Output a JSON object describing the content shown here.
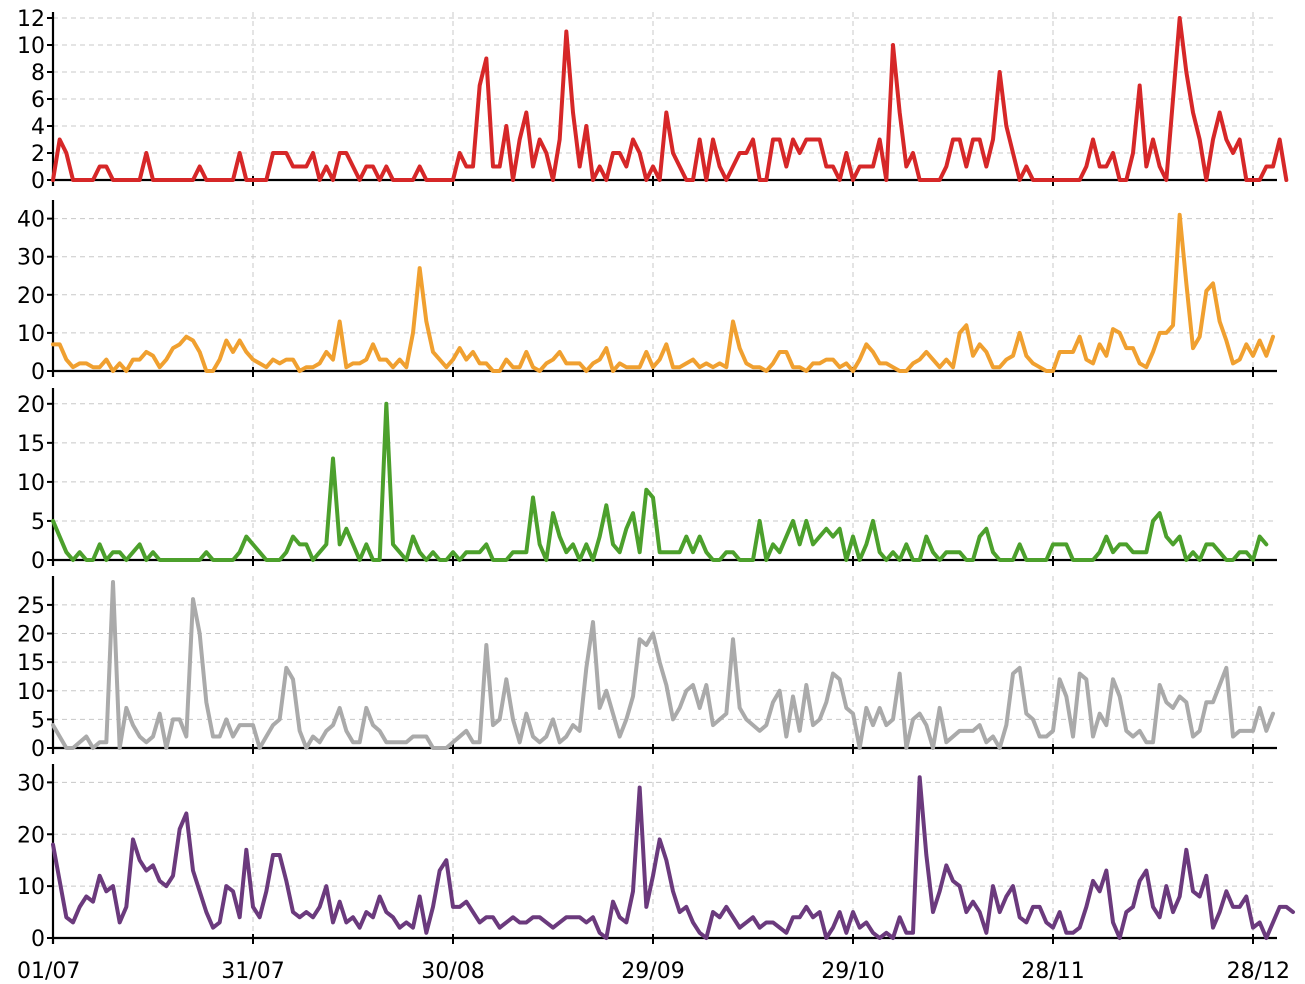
{
  "chart_data": [
    {
      "type": "line",
      "title": "",
      "xlabel": "",
      "ylabel": "",
      "x_ticks": [
        "01/07",
        "31/07",
        "30/08",
        "29/09",
        "29/10",
        "28/11",
        "28/12"
      ],
      "x_range": [
        "01/07",
        "31/12"
      ],
      "grid": true,
      "panels": [
        {
          "color": "#d62728",
          "ylim": [
            0,
            12
          ],
          "yticks": [
            0,
            2,
            4,
            6,
            8,
            10,
            12
          ],
          "values": [
            0,
            3,
            2,
            0,
            0,
            0,
            0,
            1,
            1,
            0,
            0,
            0,
            0,
            0,
            2,
            0,
            0,
            0,
            0,
            0,
            0,
            0,
            1,
            0,
            0,
            0,
            0,
            0,
            2,
            0,
            0,
            0,
            0,
            2,
            2,
            2,
            1,
            1,
            1,
            2,
            0,
            1,
            0,
            2,
            2,
            1,
            0,
            1,
            1,
            0,
            1,
            0,
            0,
            0,
            0,
            1,
            0,
            0,
            0,
            0,
            0,
            2,
            1,
            1,
            7,
            9,
            1,
            1,
            4,
            0,
            3,
            5,
            1,
            3,
            2,
            0,
            3,
            11,
            5,
            1,
            4,
            0,
            1,
            0,
            2,
            2,
            1,
            3,
            2,
            0,
            1,
            0,
            5,
            2,
            1,
            0,
            0,
            3,
            0,
            3,
            1,
            0,
            1,
            2,
            2,
            3,
            0,
            0,
            3,
            3,
            1,
            3,
            2,
            3,
            3,
            3,
            1,
            1,
            0,
            2,
            0,
            1,
            1,
            1,
            3,
            0,
            10,
            5,
            1,
            2,
            0,
            0,
            0,
            0,
            1,
            3,
            3,
            1,
            3,
            3,
            1,
            3,
            8,
            4,
            2,
            0,
            1,
            0,
            0,
            0,
            0,
            0,
            0,
            0,
            0,
            1,
            3,
            1,
            1,
            2,
            0,
            0,
            2,
            7,
            1,
            3,
            1,
            0,
            6,
            12,
            8,
            5,
            3,
            0,
            3,
            5,
            3,
            2,
            3,
            0,
            0,
            0,
            1,
            1,
            3,
            0
          ]
        },
        {
          "color": "#f0a030",
          "ylim": [
            0,
            42
          ],
          "yticks": [
            0,
            10,
            20,
            30,
            40
          ],
          "values": [
            7,
            7,
            3,
            1,
            2,
            2,
            1,
            1,
            3,
            0,
            2,
            0,
            3,
            3,
            5,
            4,
            1,
            3,
            6,
            7,
            9,
            8,
            5,
            0,
            0,
            3,
            8,
            5,
            8,
            5,
            3,
            2,
            1,
            3,
            2,
            3,
            3,
            0,
            1,
            1,
            2,
            5,
            3,
            13,
            1,
            2,
            2,
            3,
            7,
            3,
            3,
            1,
            3,
            1,
            10,
            27,
            13,
            5,
            3,
            1,
            3,
            6,
            3,
            5,
            2,
            2,
            0,
            0,
            3,
            1,
            1,
            5,
            1,
            0,
            2,
            3,
            5,
            2,
            2,
            2,
            0,
            2,
            3,
            6,
            0,
            2,
            1,
            1,
            1,
            5,
            1,
            3,
            7,
            1,
            1,
            2,
            3,
            1,
            2,
            1,
            2,
            1,
            13,
            6,
            2,
            1,
            1,
            0,
            2,
            5,
            5,
            1,
            1,
            0,
            2,
            2,
            3,
            3,
            1,
            2,
            0,
            3,
            7,
            5,
            2,
            2,
            1,
            0,
            0,
            2,
            3,
            5,
            3,
            1,
            3,
            1,
            10,
            12,
            4,
            7,
            5,
            1,
            1,
            3,
            4,
            10,
            4,
            2,
            1,
            0,
            0,
            5,
            5,
            5,
            9,
            3,
            2,
            7,
            4,
            11,
            10,
            6,
            6,
            2,
            1,
            5,
            10,
            10,
            12,
            41,
            23,
            6,
            9,
            21,
            23,
            13,
            8,
            2,
            3,
            7,
            4,
            8,
            4,
            9
          ]
        },
        {
          "color": "#4ca02c",
          "ylim": [
            0,
            21
          ],
          "yticks": [
            0,
            5,
            10,
            15,
            20
          ],
          "values": [
            5,
            3,
            1,
            0,
            1,
            0,
            0,
            2,
            0,
            1,
            1,
            0,
            1,
            2,
            0,
            1,
            0,
            0,
            0,
            0,
            0,
            0,
            0,
            1,
            0,
            0,
            0,
            0,
            1,
            3,
            2,
            1,
            0,
            0,
            0,
            1,
            3,
            2,
            2,
            0,
            1,
            2,
            13,
            2,
            4,
            2,
            0,
            2,
            0,
            0,
            20,
            2,
            1,
            0,
            3,
            1,
            0,
            1,
            0,
            0,
            1,
            0,
            1,
            1,
            1,
            2,
            0,
            0,
            0,
            1,
            1,
            1,
            8,
            2,
            0,
            6,
            3,
            1,
            2,
            0,
            2,
            0,
            3,
            7,
            2,
            1,
            4,
            6,
            1,
            9,
            8,
            1,
            1,
            1,
            1,
            3,
            1,
            3,
            1,
            0,
            0,
            1,
            1,
            0,
            0,
            0,
            5,
            0,
            2,
            1,
            3,
            5,
            2,
            5,
            2,
            3,
            4,
            3,
            4,
            0,
            3,
            0,
            2,
            5,
            1,
            0,
            1,
            0,
            2,
            0,
            0,
            3,
            1,
            0,
            1,
            1,
            1,
            0,
            0,
            3,
            4,
            1,
            0,
            0,
            0,
            2,
            0,
            0,
            0,
            0,
            2,
            2,
            2,
            0,
            0,
            0,
            0,
            1,
            3,
            1,
            2,
            2,
            1,
            1,
            1,
            5,
            6,
            3,
            2,
            3,
            0,
            1,
            0,
            2,
            2,
            1,
            0,
            0,
            1,
            1,
            0,
            3,
            2
          ]
        },
        {
          "color": "#aaaaaa",
          "ylim": [
            0,
            29
          ],
          "yticks": [
            0,
            5,
            10,
            15,
            20,
            25
          ],
          "values": [
            4,
            2,
            0,
            0,
            1,
            2,
            0,
            1,
            1,
            29,
            0,
            7,
            4,
            2,
            1,
            2,
            6,
            0,
            5,
            5,
            2,
            26,
            20,
            8,
            2,
            2,
            5,
            2,
            4,
            4,
            4,
            0,
            2,
            4,
            5,
            14,
            12,
            3,
            0,
            2,
            1,
            3,
            4,
            7,
            3,
            1,
            1,
            7,
            4,
            3,
            1,
            1,
            1,
            1,
            2,
            2,
            2,
            0,
            0,
            0,
            1,
            2,
            3,
            1,
            1,
            18,
            4,
            5,
            12,
            5,
            1,
            6,
            2,
            1,
            2,
            5,
            1,
            2,
            4,
            3,
            14,
            22,
            7,
            10,
            6,
            2,
            5,
            9,
            19,
            18,
            20,
            15,
            11,
            5,
            7,
            10,
            11,
            7,
            11,
            4,
            5,
            6,
            19,
            7,
            5,
            4,
            3,
            4,
            8,
            10,
            2,
            9,
            3,
            11,
            4,
            5,
            8,
            13,
            12,
            7,
            6,
            0,
            7,
            4,
            7,
            4,
            5,
            13,
            0,
            5,
            6,
            4,
            0,
            7,
            1,
            2,
            3,
            3,
            3,
            4,
            1,
            2,
            0,
            4,
            13,
            14,
            6,
            5,
            2,
            2,
            3,
            12,
            9,
            2,
            13,
            12,
            2,
            6,
            4,
            12,
            9,
            3,
            2,
            3,
            1,
            1,
            11,
            8,
            7,
            9,
            8,
            2,
            3,
            8,
            8,
            11,
            14,
            2,
            3,
            3,
            3,
            7,
            3,
            6
          ]
        },
        {
          "color": "#6b3a7d",
          "ylim": [
            0,
            32
          ],
          "yticks": [
            0,
            10,
            20,
            30
          ],
          "values": [
            18,
            11,
            4,
            3,
            6,
            8,
            7,
            12,
            9,
            10,
            3,
            6,
            19,
            15,
            13,
            14,
            11,
            10,
            12,
            21,
            24,
            13,
            9,
            5,
            2,
            3,
            10,
            9,
            4,
            17,
            6,
            4,
            9,
            16,
            16,
            11,
            5,
            4,
            5,
            4,
            6,
            10,
            3,
            7,
            3,
            4,
            2,
            5,
            4,
            8,
            5,
            4,
            2,
            3,
            2,
            8,
            1,
            6,
            13,
            15,
            6,
            6,
            7,
            5,
            3,
            4,
            4,
            2,
            3,
            4,
            3,
            3,
            4,
            4,
            3,
            2,
            3,
            4,
            4,
            4,
            3,
            4,
            1,
            0,
            7,
            4,
            3,
            9,
            29,
            6,
            12,
            19,
            15,
            9,
            5,
            6,
            3,
            1,
            0,
            5,
            4,
            6,
            4,
            2,
            3,
            4,
            2,
            3,
            3,
            2,
            1,
            4,
            4,
            6,
            4,
            5,
            0,
            2,
            5,
            1,
            5,
            2,
            3,
            1,
            0,
            1,
            0,
            4,
            1,
            1,
            31,
            16,
            5,
            9,
            14,
            11,
            10,
            5,
            7,
            5,
            1,
            10,
            5,
            8,
            10,
            4,
            3,
            6,
            6,
            3,
            2,
            5,
            1,
            1,
            2,
            6,
            11,
            9,
            13,
            3,
            0,
            5,
            6,
            11,
            13,
            6,
            4,
            10,
            5,
            8,
            17,
            9,
            8,
            12,
            2,
            5,
            9,
            6,
            6,
            8,
            2,
            3,
            0,
            3,
            6,
            6,
            5
          ]
        }
      ]
    }
  ]
}
